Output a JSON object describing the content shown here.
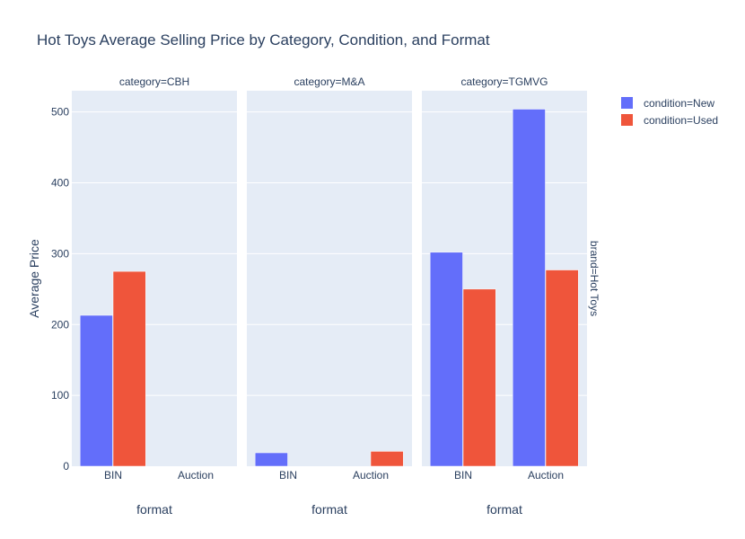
{
  "chart_data": {
    "type": "bar",
    "title": "Hot Toys Average Selling Price by Category, Condition, and Format",
    "ylabel": "Average Price",
    "xlabel": "format",
    "ylim": [
      0,
      530
    ],
    "yticks": [
      0,
      100,
      200,
      300,
      400,
      500
    ],
    "categories": [
      "BIN",
      "Auction"
    ],
    "row_label": "brand=Hot Toys",
    "legend_position": "top-right",
    "series_names": [
      "condition=New",
      "condition=Used"
    ],
    "colors": {
      "New": "#636efa",
      "Used": "#ef553b",
      "plot_bg": "#e5ecf6",
      "grid": "#ffffff"
    },
    "facets": [
      {
        "label": "category=CBH",
        "xlabel": "format",
        "series": [
          {
            "name": "condition=New",
            "values": [
              213,
              null
            ]
          },
          {
            "name": "condition=Used",
            "values": [
              275,
              null
            ]
          }
        ]
      },
      {
        "label": "category=M&A",
        "xlabel": "format",
        "series": [
          {
            "name": "condition=New",
            "values": [
              19,
              null
            ]
          },
          {
            "name": "condition=Used",
            "values": [
              null,
              21
            ]
          }
        ]
      },
      {
        "label": "category=TGMVG",
        "xlabel": "format",
        "series": [
          {
            "name": "condition=New",
            "values": [
              302,
              504
            ]
          },
          {
            "name": "condition=Used",
            "values": [
              250,
              277
            ]
          }
        ]
      }
    ]
  }
}
